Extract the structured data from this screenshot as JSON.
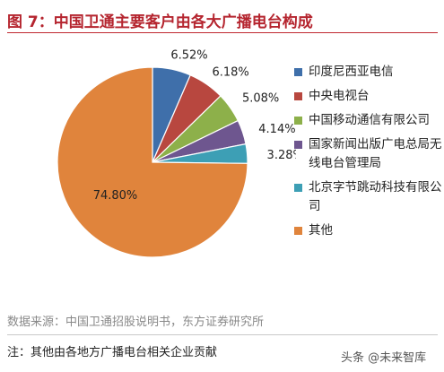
{
  "header": {
    "title": "图 7：中国卫通主要客户由各大广播电台构成"
  },
  "chart_data": {
    "type": "pie",
    "series": [
      {
        "name": "印度尼西亚电信",
        "value": 6.52,
        "label": "6.52%",
        "color": "#3f6faa"
      },
      {
        "name": "中央电视台",
        "value": 6.18,
        "label": "6.18%",
        "color": "#b8473f"
      },
      {
        "name": "中国移动通信有限公司",
        "value": 5.08,
        "label": "5.08%",
        "color": "#8db04a"
      },
      {
        "name": "国家新闻出版广电总局无线电台管理局",
        "value": 4.14,
        "label": "4.14%",
        "color": "#6e568f"
      },
      {
        "name": "北京字节跳动科技有限公司",
        "value": 3.28,
        "label": "3.28%",
        "color": "#3d9fb5"
      },
      {
        "name": "其他",
        "value": 74.8,
        "label": "74.80%",
        "color": "#e0843c"
      }
    ],
    "legend_position": "right"
  },
  "legend": [
    "印度尼西亚电信",
    "中央电视台",
    "中国移动通信有限公司",
    "国家新闻出版广电总局无线电台管理局",
    "北京字节跳动科技有限公司",
    "其他"
  ],
  "footer": {
    "source": "数据来源：中国卫通招股说明书，东方证券研究所",
    "note": "注：其他由各地方广播电台相关企业贡献",
    "watermark": "头条 @未来智库"
  }
}
